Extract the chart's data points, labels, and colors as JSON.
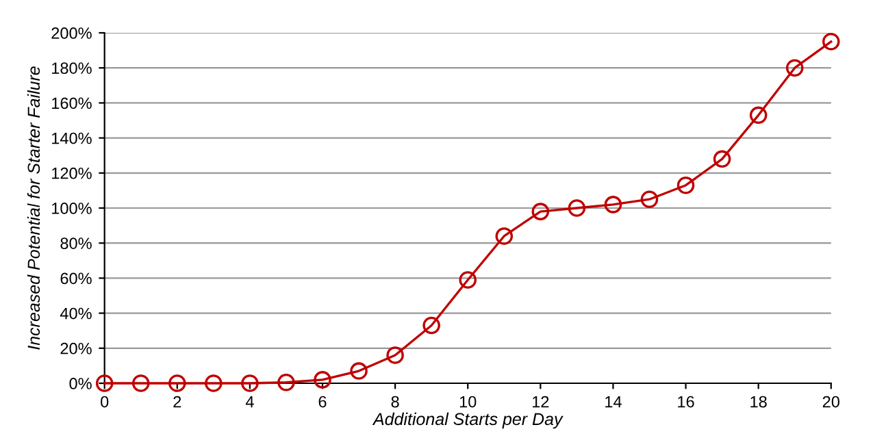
{
  "chart_data": {
    "type": "line",
    "xlabel": "Additional Starts per Day",
    "ylabel": "Increased Potential for Starter Failure",
    "x": [
      0,
      1,
      2,
      3,
      4,
      5,
      6,
      7,
      8,
      9,
      10,
      11,
      12,
      13,
      14,
      15,
      16,
      17,
      18,
      19,
      20
    ],
    "series": [
      {
        "color": "#c00000",
        "values": [
          0,
          0,
          0,
          0,
          0,
          0.5,
          2,
          7,
          16,
          33,
          59,
          84,
          98,
          100,
          102,
          105,
          113,
          128,
          153,
          180,
          195
        ]
      }
    ],
    "xlim": [
      0,
      20
    ],
    "xticks": [
      0,
      2,
      4,
      6,
      8,
      10,
      12,
      14,
      16,
      18,
      20
    ],
    "ylim": [
      0,
      200
    ],
    "yticks": [
      {
        "value": 0,
        "label": "0%"
      },
      {
        "value": 20,
        "label": "20%"
      },
      {
        "value": 40,
        "label": "40%"
      },
      {
        "value": 60,
        "label": "60%"
      },
      {
        "value": 80,
        "label": "80%"
      },
      {
        "value": 100,
        "label": "100%"
      },
      {
        "value": 120,
        "label": "120%"
      },
      {
        "value": 140,
        "label": "140%"
      },
      {
        "value": 160,
        "label": "160%"
      },
      {
        "value": 180,
        "label": "180%"
      },
      {
        "value": 200,
        "label": "200%"
      }
    ],
    "grid": "y",
    "marker": "circle",
    "line_style": "solid"
  }
}
